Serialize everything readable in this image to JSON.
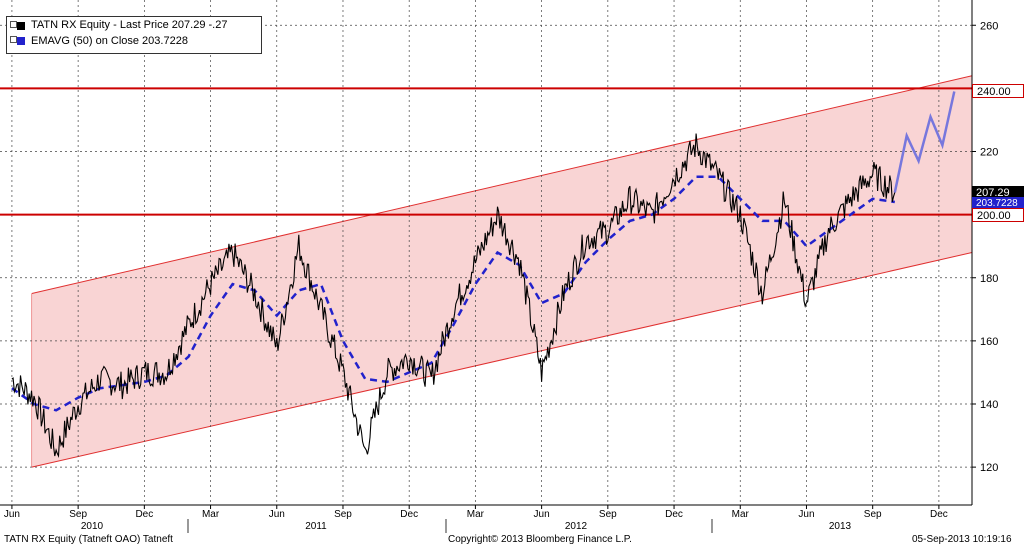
{
  "legend": {
    "row1": "TATN RX Equity - Last Price 207.29     -.27",
    "row2": "EMAVG (50) on Close        203.7228"
  },
  "footer": {
    "left": "TATN RX Equity (Tatneft OAO) Tatneft",
    "center": "Copyright© 2013 Bloomberg Finance L.P.",
    "right": "05-Sep-2013 10:19:16"
  },
  "tags": {
    "r240": "240.00",
    "last": "207.29",
    "ema": "203.7228",
    "r200": "200.00"
  },
  "colors": {
    "price": "#000000",
    "ema": "#2222cc",
    "channel_fill": "#f9d4d4",
    "channel_line": "#e03030",
    "resistance": "#cc0000",
    "projection": "#7777dd",
    "grid": "#444444"
  },
  "chart_data": {
    "type": "line",
    "title": "",
    "xlabel": "",
    "ylabel": "",
    "ylim": [
      108,
      268
    ],
    "yticks": [
      120,
      140,
      160,
      180,
      200,
      220,
      240,
      260
    ],
    "x_ticks": [
      "Jun",
      "Sep",
      "Dec",
      "Mar",
      "Jun",
      "Sep",
      "Dec",
      "Mar",
      "Jun",
      "Sep",
      "Dec",
      "Mar",
      "Jun",
      "Sep",
      "Dec"
    ],
    "year_labels": [
      "2010",
      "2011",
      "2012",
      "2013"
    ],
    "x": [
      "2010-05",
      "2010-06",
      "2010-07",
      "2010-08",
      "2010-09",
      "2010-10",
      "2010-11",
      "2010-12",
      "2011-01",
      "2011-02",
      "2011-03",
      "2011-04",
      "2011-05",
      "2011-06",
      "2011-07",
      "2011-08",
      "2011-09",
      "2011-10",
      "2011-11",
      "2011-12",
      "2012-01",
      "2012-02",
      "2012-03",
      "2012-04",
      "2012-05",
      "2012-06",
      "2012-07",
      "2012-08",
      "2012-09",
      "2012-10",
      "2012-11",
      "2012-12",
      "2013-01",
      "2013-02",
      "2013-03",
      "2013-04",
      "2013-05",
      "2013-06",
      "2013-07",
      "2013-08",
      "2013-09"
    ],
    "series": [
      {
        "name": "TATN RX Equity - Last Price",
        "values": [
          148,
          142,
          125,
          140,
          148,
          146,
          150,
          150,
          165,
          178,
          188,
          175,
          158,
          190,
          170,
          150,
          125,
          150,
          155,
          148,
          170,
          185,
          200,
          185,
          150,
          175,
          192,
          195,
          205,
          200,
          212,
          222,
          212,
          200,
          175,
          205,
          172,
          195,
          205,
          213,
          207
        ]
      },
      {
        "name": "EMAVG (50) on Close",
        "values": [
          145,
          140,
          138,
          142,
          145,
          146,
          147,
          149,
          155,
          168,
          178,
          176,
          168,
          176,
          178,
          160,
          148,
          147,
          150,
          153,
          165,
          178,
          188,
          184,
          172,
          175,
          185,
          192,
          198,
          200,
          205,
          212,
          212,
          205,
          198,
          198,
          190,
          195,
          200,
          205,
          204
        ]
      }
    ],
    "projection": [
      207,
      225,
      217,
      231,
      222,
      239
    ],
    "resistance_lines": [
      240,
      200
    ],
    "channel": {
      "upper_start": 175,
      "upper_end": 244,
      "lower_start": 120,
      "lower_end": 188
    },
    "grid": true,
    "legend_position": "top-left"
  }
}
